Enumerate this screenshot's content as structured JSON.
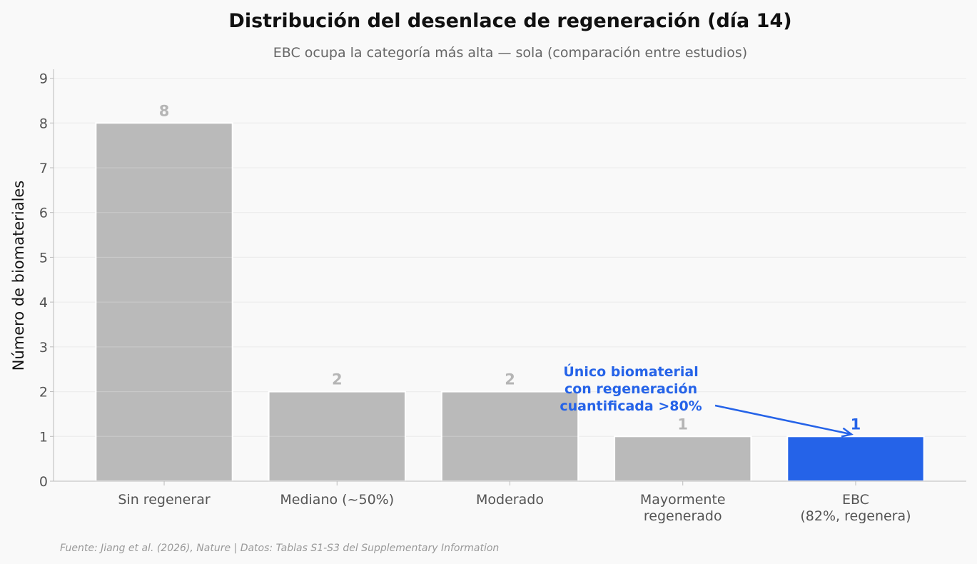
{
  "chart_data": {
    "type": "bar",
    "title": "Distribución del desenlace de regeneración (día 14)",
    "subtitle": "EBC ocupa la categoría más alta — sola (comparación entre estudios)",
    "xlabel": "",
    "ylabel": "Número de biomateriales",
    "ylim": [
      0,
      9.2
    ],
    "yticks": [
      0,
      1,
      2,
      3,
      4,
      5,
      6,
      7,
      8,
      9
    ],
    "grid": true,
    "categories": [
      [
        "Sin regenerar"
      ],
      [
        "Mediano (~50%)"
      ],
      [
        "Moderado"
      ],
      [
        "Mayormente",
        "regenerado"
      ],
      [
        "EBC",
        "(82%, regenera)"
      ]
    ],
    "values": [
      8,
      2,
      2,
      1,
      1
    ],
    "highlight_index": 4,
    "colors": {
      "default": "#bababa",
      "highlight": "#2563e8"
    },
    "annotation": {
      "lines": [
        "Único biomaterial",
        "con regeneración",
        "cuantificada >80%"
      ],
      "color": "#2563e8"
    },
    "source": "Fuente: Jiang et al. (2026), Nature | Datos: Tablas S1-S3 del Supplementary Information"
  }
}
